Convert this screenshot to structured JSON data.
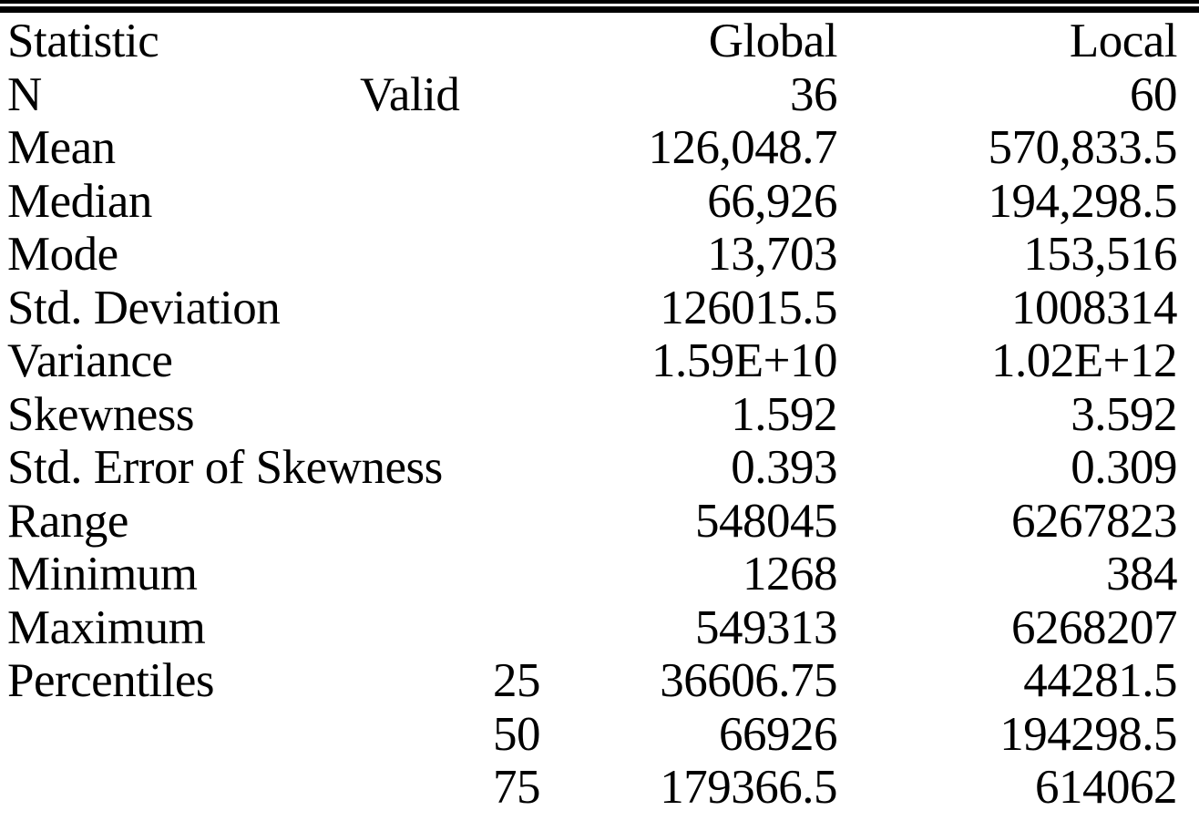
{
  "table": {
    "colors": {
      "text": "#000000",
      "background": "#ffffff",
      "rule": "#000000"
    },
    "header": {
      "statistic": "Statistic",
      "sub": "",
      "global": "Global",
      "local": "Local"
    },
    "rows": [
      {
        "label": "N",
        "sub": "Valid",
        "global": "36",
        "local": "60"
      },
      {
        "label": "Mean",
        "sub": "",
        "global": "126,048.7",
        "local": "570,833.5"
      },
      {
        "label": "Median",
        "sub": "",
        "global": "66,926",
        "local": "194,298.5"
      },
      {
        "label": "Mode",
        "sub": "",
        "global": "13,703",
        "local": "153,516"
      },
      {
        "label": "Std. Deviation",
        "sub": "",
        "global": "126015.5",
        "local": "1008314"
      },
      {
        "label": "Variance",
        "sub": "",
        "global": "1.59E+10",
        "local": "1.02E+12"
      },
      {
        "label": "Skewness",
        "sub": "",
        "global": "1.592",
        "local": "3.592"
      },
      {
        "label": "Std. Error of Skewness",
        "sub": "",
        "global": "0.393",
        "local": "0.309"
      },
      {
        "label": "Range",
        "sub": "",
        "global": "548045",
        "local": "6267823"
      },
      {
        "label": "Minimum",
        "sub": "",
        "global": "1268",
        "local": "384"
      },
      {
        "label": "Maximum",
        "sub": "",
        "global": "549313",
        "local": "6268207"
      },
      {
        "label": "Percentiles",
        "sub": "25",
        "global": "36606.75",
        "local": "44281.5"
      },
      {
        "label": "",
        "sub": "50",
        "global": "66926",
        "local": "194298.5"
      },
      {
        "label": "",
        "sub": "75",
        "global": "179366.5",
        "local": "614062"
      }
    ]
  }
}
